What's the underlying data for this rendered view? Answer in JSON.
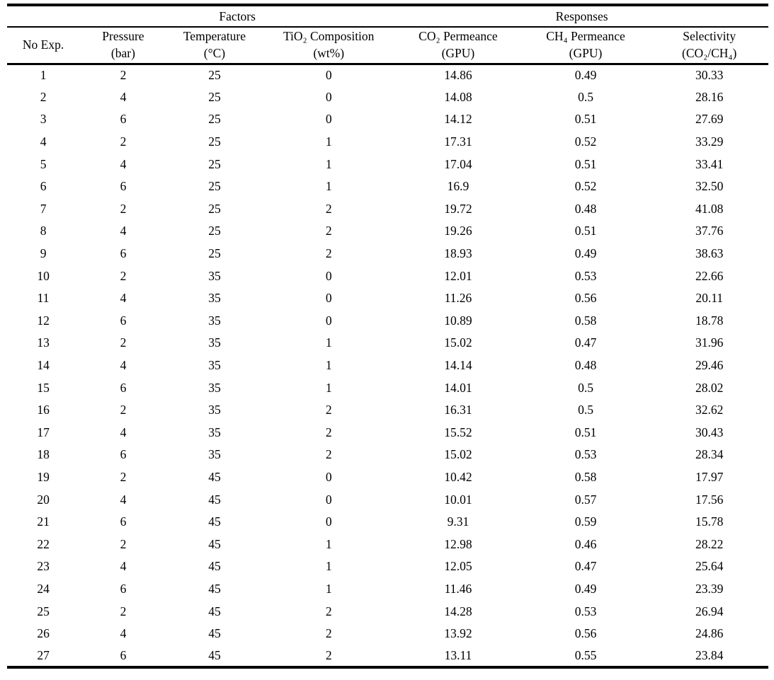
{
  "table": {
    "group_header": {
      "factors_label": "Factors",
      "responses_label": "Responses"
    },
    "columns": [
      {
        "name": "No Exp.",
        "unit": ""
      },
      {
        "name": "Pressure",
        "unit": "(bar)"
      },
      {
        "name": "Temperature",
        "unit": "(°C)"
      },
      {
        "name": "TiO₂ Composition",
        "unit": "(wt%)"
      },
      {
        "name": "CO₂ Permeance",
        "unit": "(GPU)"
      },
      {
        "name": "CH₄ Permeance",
        "unit": "(GPU)"
      },
      {
        "name": "Selectivity",
        "unit": "(CO₂/CH₄)"
      }
    ],
    "rows": [
      [
        "1",
        "2",
        "25",
        "0",
        "14.86",
        "0.49",
        "30.33"
      ],
      [
        "2",
        "4",
        "25",
        "0",
        "14.08",
        "0.5",
        "28.16"
      ],
      [
        "3",
        "6",
        "25",
        "0",
        "14.12",
        "0.51",
        "27.69"
      ],
      [
        "4",
        "2",
        "25",
        "1",
        "17.31",
        "0.52",
        "33.29"
      ],
      [
        "5",
        "4",
        "25",
        "1",
        "17.04",
        "0.51",
        "33.41"
      ],
      [
        "6",
        "6",
        "25",
        "1",
        "16.9",
        "0.52",
        "32.50"
      ],
      [
        "7",
        "2",
        "25",
        "2",
        "19.72",
        "0.48",
        "41.08"
      ],
      [
        "8",
        "4",
        "25",
        "2",
        "19.26",
        "0.51",
        "37.76"
      ],
      [
        "9",
        "6",
        "25",
        "2",
        "18.93",
        "0.49",
        "38.63"
      ],
      [
        "10",
        "2",
        "35",
        "0",
        "12.01",
        "0.53",
        "22.66"
      ],
      [
        "11",
        "4",
        "35",
        "0",
        "11.26",
        "0.56",
        "20.11"
      ],
      [
        "12",
        "6",
        "35",
        "0",
        "10.89",
        "0.58",
        "18.78"
      ],
      [
        "13",
        "2",
        "35",
        "1",
        "15.02",
        "0.47",
        "31.96"
      ],
      [
        "14",
        "4",
        "35",
        "1",
        "14.14",
        "0.48",
        "29.46"
      ],
      [
        "15",
        "6",
        "35",
        "1",
        "14.01",
        "0.5",
        "28.02"
      ],
      [
        "16",
        "2",
        "35",
        "2",
        "16.31",
        "0.5",
        "32.62"
      ],
      [
        "17",
        "4",
        "35",
        "2",
        "15.52",
        "0.51",
        "30.43"
      ],
      [
        "18",
        "6",
        "35",
        "2",
        "15.02",
        "0.53",
        "28.34"
      ],
      [
        "19",
        "2",
        "45",
        "0",
        "10.42",
        "0.58",
        "17.97"
      ],
      [
        "20",
        "4",
        "45",
        "0",
        "10.01",
        "0.57",
        "17.56"
      ],
      [
        "21",
        "6",
        "45",
        "0",
        "9.31",
        "0.59",
        "15.78"
      ],
      [
        "22",
        "2",
        "45",
        "1",
        "12.98",
        "0.46",
        "28.22"
      ],
      [
        "23",
        "4",
        "45",
        "1",
        "12.05",
        "0.47",
        "25.64"
      ],
      [
        "24",
        "6",
        "45",
        "1",
        "11.46",
        "0.49",
        "23.39"
      ],
      [
        "25",
        "2",
        "45",
        "2",
        "14.28",
        "0.53",
        "26.94"
      ],
      [
        "26",
        "4",
        "45",
        "2",
        "13.92",
        "0.56",
        "24.86"
      ],
      [
        "27",
        "6",
        "45",
        "2",
        "13.11",
        "0.55",
        "23.84"
      ]
    ]
  }
}
